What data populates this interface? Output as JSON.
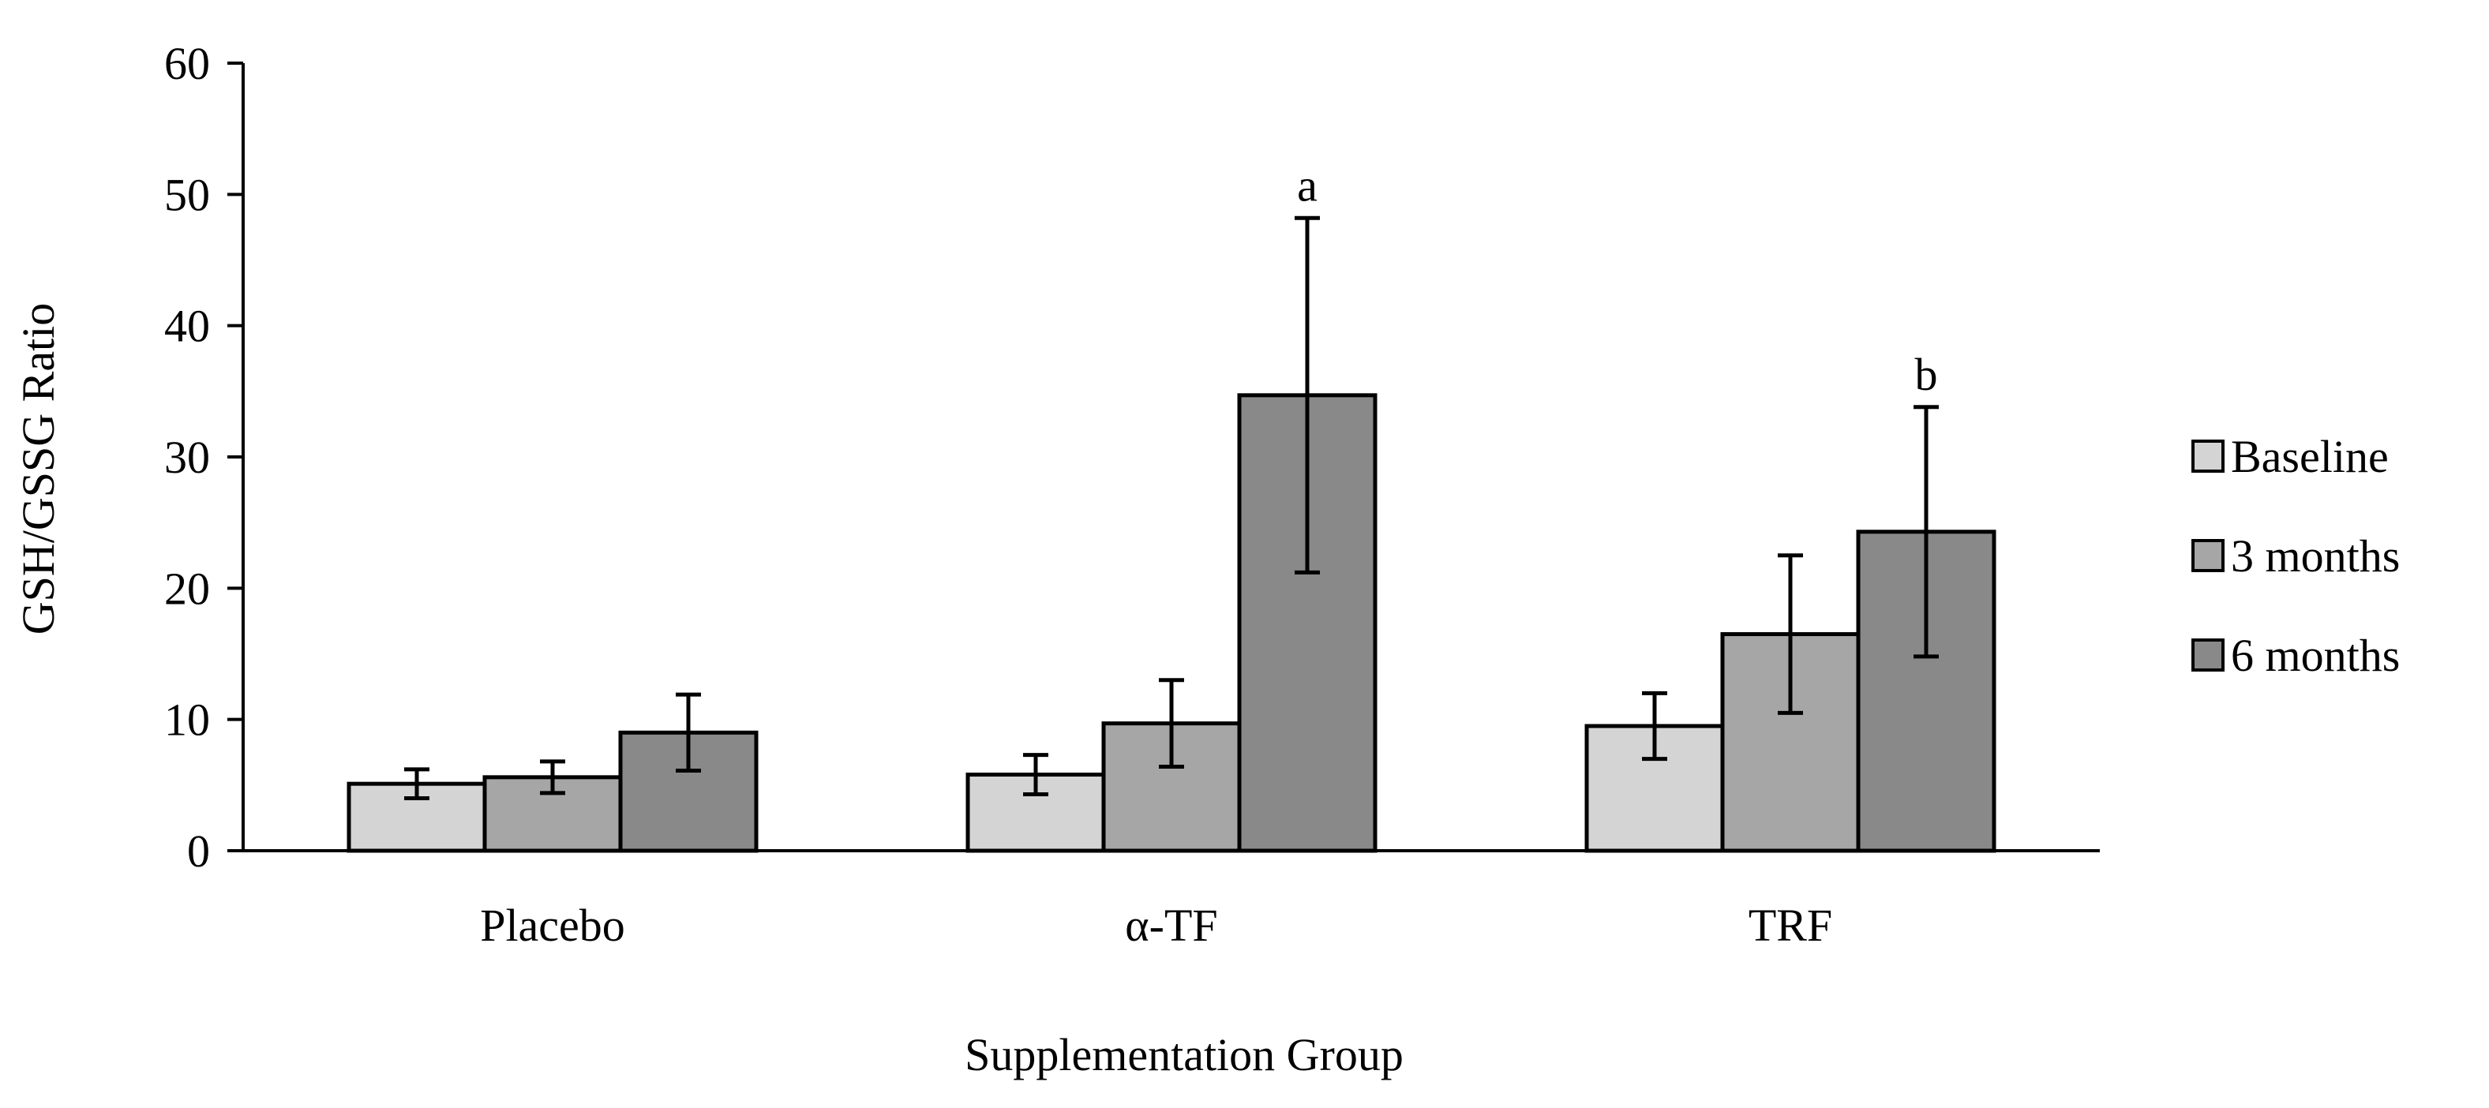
{
  "chart_data": {
    "type": "bar",
    "title": "",
    "xlabel": "Supplementation Group",
    "ylabel": "GSH/GSSG Ratio",
    "ylim": [
      0,
      60
    ],
    "yticks": [
      0,
      10,
      20,
      30,
      40,
      50,
      60
    ],
    "categories": [
      "Placebo",
      "α-TF",
      "TRF"
    ],
    "series": [
      {
        "name": "Baseline",
        "color": "#d4d4d4",
        "values": [
          5.1,
          5.8,
          9.5
        ],
        "errors": [
          1.1,
          1.5,
          2.5
        ]
      },
      {
        "name": "3 months",
        "color": "#a6a6a6",
        "values": [
          5.6,
          9.7,
          16.5
        ],
        "errors": [
          1.2,
          3.3,
          6.0
        ]
      },
      {
        "name": "6 months",
        "color": "#898989",
        "values": [
          9.0,
          34.7,
          24.3
        ],
        "errors": [
          2.9,
          13.5,
          9.5
        ]
      }
    ],
    "annotations": [
      {
        "category": "α-TF",
        "series": "6 months",
        "text": "a"
      },
      {
        "category": "TRF",
        "series": "6 months",
        "text": "b"
      }
    ],
    "legend_position": "right",
    "grid": false
  }
}
